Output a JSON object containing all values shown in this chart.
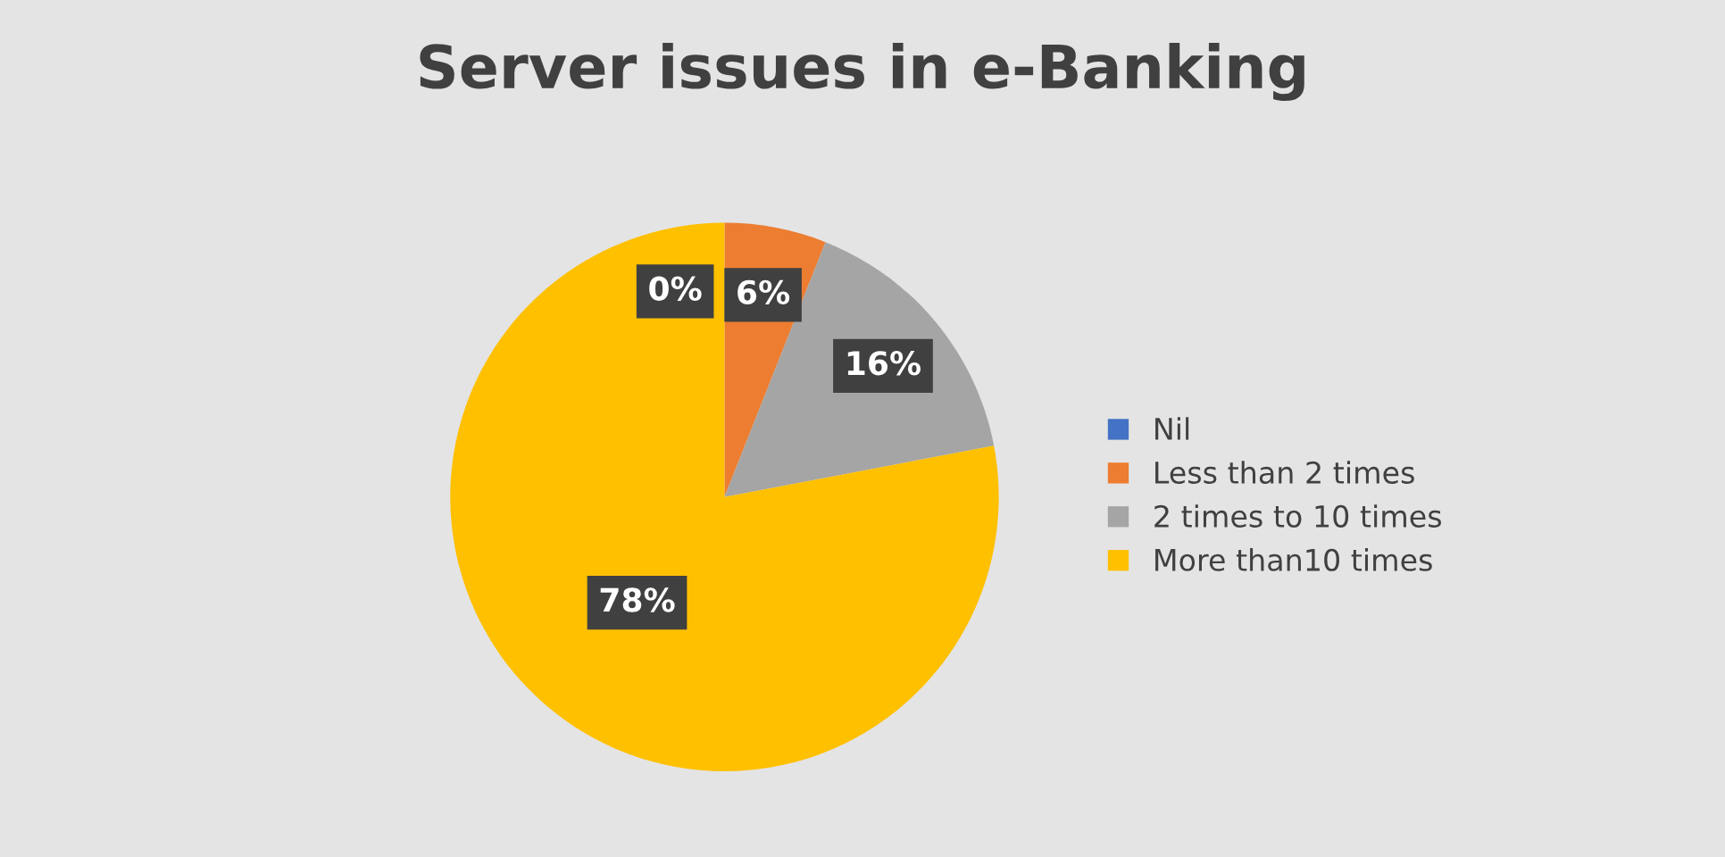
{
  "chart_data": {
    "type": "pie",
    "title": "Server issues in e-Banking",
    "categories": [
      "Nil",
      "Less than 2 times",
      "2 times to 10 times",
      "More than10 times"
    ],
    "values": [
      0,
      6,
      16,
      78
    ],
    "colors": [
      "#4472c4",
      "#ed7d31",
      "#a5a5a5",
      "#ffc000"
    ],
    "value_labels": [
      "0%",
      "6%",
      "16%",
      "78%"
    ],
    "legend": "right"
  }
}
